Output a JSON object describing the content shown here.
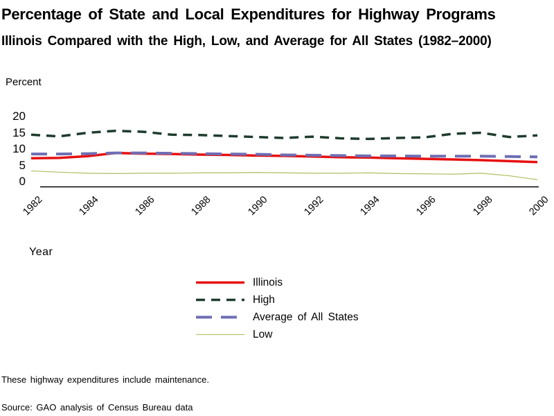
{
  "page": {
    "title": "Percentage of State and Local Expenditures for Highway Programs",
    "subtitle": "Illinois Compared with the High, Low, and Average for All States (1982–2000)",
    "y_axis_label": "Percent",
    "x_axis_label": "Year",
    "footnote": "These highway expenditures include maintenance.",
    "source": "Source: GAO analysis of Census Bureau data"
  },
  "chart_data": {
    "type": "line",
    "title": "Percentage of State and Local Expenditures for Highway Programs",
    "subtitle": "Illinois Compared with the High, Low, and Average for All States (1982–2000)",
    "xlabel": "Year",
    "ylabel": "Percent",
    "x": [
      1982,
      1983,
      1984,
      1985,
      1986,
      1987,
      1988,
      1989,
      1990,
      1991,
      1992,
      1993,
      1994,
      1995,
      1996,
      1997,
      1998,
      1999,
      2000
    ],
    "x_tick_labels": [
      "1982",
      "1984",
      "1986",
      "1988",
      "1990",
      "1992",
      "1994",
      "1996",
      "1998",
      "2000"
    ],
    "y_ticks": [
      0,
      5,
      10,
      15,
      20
    ],
    "ylim": [
      0,
      20
    ],
    "grid": false,
    "legend_position": "bottom-center",
    "axis_color": "#000000",
    "series": [
      {
        "name": "Illinois",
        "color": "#e71010",
        "style": "solid",
        "width": 3.5,
        "values": [
          7.2,
          7.3,
          7.8,
          8.8,
          8.6,
          8.5,
          8.3,
          8.2,
          8.0,
          7.9,
          7.7,
          7.5,
          7.4,
          7.2,
          7.0,
          6.8,
          6.6,
          6.3,
          6.0
        ]
      },
      {
        "name": "High",
        "color": "#1e3c2d",
        "style": "dashed",
        "width": 3.5,
        "values": [
          14.4,
          13.9,
          15.0,
          15.6,
          15.3,
          14.4,
          14.3,
          14.0,
          13.7,
          13.4,
          13.8,
          13.3,
          13.1,
          13.4,
          13.6,
          14.7,
          15.0,
          13.7,
          14.2
        ]
      },
      {
        "name": "Average of All States",
        "color": "#6e6eb4",
        "style": "long-dash",
        "width": 4,
        "values": [
          8.5,
          8.5,
          8.6,
          8.8,
          8.8,
          8.7,
          8.6,
          8.5,
          8.4,
          8.2,
          8.1,
          8.0,
          7.9,
          7.9,
          7.8,
          7.8,
          7.8,
          7.7,
          7.6
        ]
      },
      {
        "name": "Low",
        "color": "#b4c46e",
        "style": "solid",
        "width": 1.3,
        "values": [
          3.3,
          2.9,
          2.6,
          2.5,
          2.6,
          2.6,
          2.7,
          2.7,
          2.8,
          2.7,
          2.6,
          2.6,
          2.7,
          2.5,
          2.4,
          2.3,
          2.6,
          1.8,
          0.6
        ]
      }
    ]
  }
}
